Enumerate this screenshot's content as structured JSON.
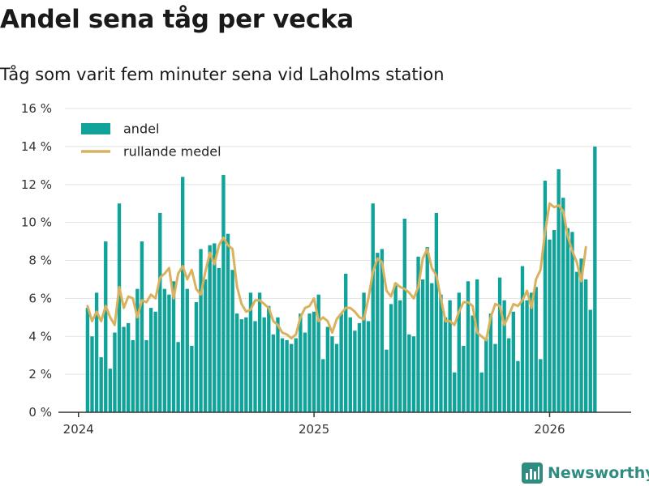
{
  "header": {
    "title": "Andel sena tåg per vecka",
    "subtitle": "Tåg som varit fem minuter sena vid Laholms station"
  },
  "branding": {
    "name": "Newsworthy",
    "icon": "bar-chart-logo-icon"
  },
  "colors": {
    "bar": "#0fa39a",
    "line": "#d8b25e",
    "grid": "#e3e3e3",
    "axis": "#333333",
    "brand": "#2e8c80"
  },
  "chart_data": {
    "type": "bar",
    "title": "Andel sena tåg per vecka",
    "subtitle": "Tåg som varit fem minuter sena vid Laholms station",
    "xlabel": "",
    "ylabel": "",
    "ylim": [
      0,
      16
    ],
    "y_ticks": [
      0,
      2,
      4,
      6,
      8,
      10,
      12,
      14,
      16
    ],
    "y_tick_labels": [
      "0 %",
      "2 %",
      "4 %",
      "6 %",
      "8 %",
      "10 %",
      "12 %",
      "14 %",
      "16 %"
    ],
    "x_start_week": 2,
    "x_ticks": [
      0,
      52,
      104
    ],
    "x_tick_labels": [
      "2024",
      "2025",
      "2026"
    ],
    "x_range_weeks": [
      -3,
      122
    ],
    "grid": true,
    "legend": {
      "placement": "top-left",
      "entries": [
        {
          "label": "andel",
          "kind": "bar"
        },
        {
          "label": "rullande medel",
          "kind": "line"
        }
      ]
    },
    "series": [
      {
        "name": "andel",
        "kind": "bar",
        "values": [
          5.5,
          4.0,
          6.3,
          2.9,
          9.0,
          2.3,
          4.2,
          11.0,
          4.5,
          4.7,
          3.8,
          6.5,
          9.0,
          3.8,
          5.5,
          5.3,
          10.5,
          6.5,
          6.2,
          6.9,
          3.7,
          12.4,
          6.5,
          3.5,
          5.8,
          8.6,
          7.0,
          8.8,
          8.9,
          7.6,
          12.5,
          9.4,
          7.5,
          5.2,
          4.9,
          5.0,
          6.3,
          4.8,
          6.3,
          5.0,
          5.6,
          4.1,
          5.0,
          3.9,
          3.8,
          3.6,
          3.9,
          5.2,
          4.2,
          5.2,
          5.3,
          6.2,
          2.8,
          4.5,
          4.0,
          3.6,
          5.2,
          7.3,
          5.0,
          4.3,
          4.7,
          6.3,
          4.8,
          11.0,
          8.4,
          8.6,
          3.3,
          5.7,
          6.8,
          5.9,
          10.2,
          4.1,
          4.0,
          8.2,
          7.0,
          8.7,
          6.8,
          10.5,
          6.2,
          5.0,
          5.9,
          2.1,
          6.3,
          3.5,
          6.9,
          5.1,
          7.0,
          2.1,
          3.9,
          5.2,
          3.6,
          7.1,
          5.9,
          3.9,
          5.3,
          2.7,
          7.7,
          5.9,
          6.3,
          6.6,
          2.8,
          12.2,
          9.1,
          9.6,
          12.8,
          11.3,
          9.7,
          9.5,
          7.4,
          8.1,
          7.0,
          5.4,
          14.0
        ]
      },
      {
        "name": "rullande medel",
        "kind": "line",
        "values": [
          5.6,
          4.8,
          5.3,
          4.8,
          5.6,
          5.0,
          4.6,
          6.6,
          5.5,
          6.1,
          6.0,
          5.0,
          5.9,
          5.8,
          6.2,
          6.0,
          7.1,
          7.3,
          7.6,
          6.0,
          7.3,
          7.7,
          7.0,
          7.5,
          6.5,
          6.2,
          7.4,
          8.4,
          7.8,
          8.8,
          9.2,
          8.8,
          8.6,
          6.6,
          5.7,
          5.3,
          5.4,
          5.9,
          5.9,
          5.7,
          5.5,
          4.8,
          4.6,
          4.2,
          4.1,
          3.9,
          4.1,
          5.0,
          5.5,
          5.6,
          6.0,
          4.8,
          5.0,
          4.8,
          4.2,
          4.9,
          5.2,
          5.5,
          5.5,
          5.3,
          5.0,
          4.9,
          6.0,
          7.4,
          8.1,
          7.9,
          6.4,
          6.1,
          6.8,
          6.6,
          6.5,
          6.3,
          6.0,
          6.6,
          8.1,
          8.6,
          7.6,
          7.2,
          6.0,
          4.8,
          4.8,
          4.6,
          5.3,
          5.8,
          5.8,
          5.6,
          4.2,
          4.0,
          3.8,
          5.0,
          5.7,
          5.6,
          4.6,
          5.1,
          5.7,
          5.6,
          5.9,
          6.4,
          5.5,
          7.0,
          7.5,
          9.5,
          11.0,
          10.8,
          10.9,
          10.6,
          9.3,
          8.5,
          7.9,
          6.9,
          8.7
        ]
      }
    ]
  }
}
